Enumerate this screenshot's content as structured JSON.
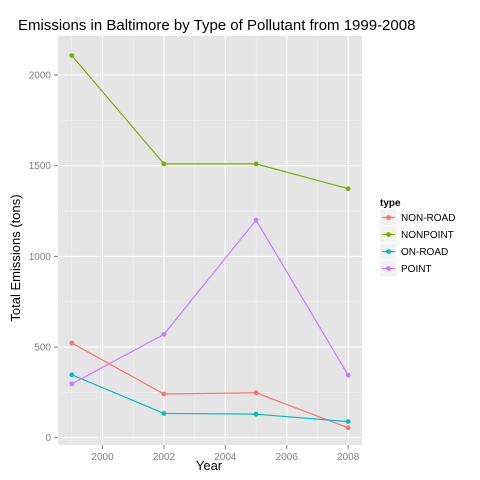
{
  "chart_data": {
    "type": "line",
    "title": "Emissions in Baltimore by Type of Pollutant from 1999-2008",
    "xlabel": "Year",
    "ylabel": "Total Emissions (tons)",
    "x": [
      1999,
      2002,
      2005,
      2008
    ],
    "xlim": [
      1998.55,
      2008.45
    ],
    "ylim": [
      -40,
      2215
    ],
    "xticks": [
      2000,
      2002,
      2004,
      2006,
      2008
    ],
    "yticks": [
      0,
      500,
      1000,
      1500,
      2000
    ],
    "grid": true,
    "legend": {
      "title": "type",
      "placement": "right"
    },
    "series": [
      {
        "name": "NON-ROAD",
        "color": "#f8766d",
        "values": [
          522,
          241,
          248,
          55
        ]
      },
      {
        "name": "NONPOINT",
        "color": "#7cae00",
        "values": [
          2107,
          1510,
          1510,
          1373
        ]
      },
      {
        "name": "ON-ROAD",
        "color": "#00bfc4",
        "values": [
          347,
          134,
          130,
          89
        ]
      },
      {
        "name": "POINT",
        "color": "#c77cff",
        "values": [
          297,
          570,
          1200,
          345
        ]
      }
    ]
  }
}
